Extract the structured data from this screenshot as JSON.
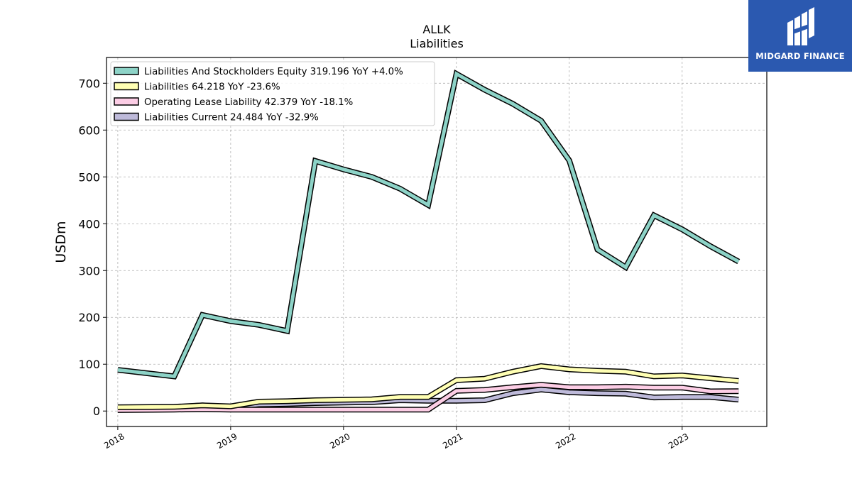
{
  "logo": {
    "text": "MIDGARD FINANCE",
    "bg_color": "#2b59b0"
  },
  "chart_data": {
    "type": "line",
    "title": "ALLK",
    "subtitle": "Liabilities",
    "ylabel": "USDm",
    "xlabel": "",
    "xlim": [
      2017.9,
      2023.75
    ],
    "ylim": [
      -33,
      755
    ],
    "yticks": [
      0,
      100,
      200,
      300,
      400,
      500,
      600,
      700
    ],
    "xticks": [
      "2018",
      "2019",
      "2020",
      "2021",
      "2022",
      "2023"
    ],
    "grid": true,
    "legend_position": "top-left",
    "x": [
      2018.0,
      2018.5,
      2018.75,
      2019.0,
      2019.25,
      2019.5,
      2019.75,
      2020.0,
      2020.25,
      2020.5,
      2020.75,
      2021.0,
      2021.25,
      2021.5,
      2021.75,
      2022.0,
      2022.25,
      2022.5,
      2022.75,
      2023.0,
      2023.25,
      2023.5
    ],
    "series": [
      {
        "name": "Liabilities And Stockholders Equity  319.196 YoY +4.0%",
        "color": "#8dd3c7",
        "values": [
          88,
          74,
          205,
          192,
          184,
          171,
          534,
          516,
          500,
          475,
          440,
          720,
          686,
          656,
          620,
          535,
          345,
          307,
          418,
          388,
          352,
          319.196
        ]
      },
      {
        "name": "Liabilities  64.218 YoY -23.6%",
        "color": "#ffffb3",
        "values": [
          8,
          9,
          12,
          10,
          20,
          21,
          23,
          24,
          25,
          30,
          30,
          66,
          69,
          84,
          96,
          89,
          86,
          84,
          74,
          76,
          70,
          64.218
        ]
      },
      {
        "name": "Operating Lease Liability  42.379 YoY -18.1%",
        "color": "#fccde5",
        "values": [
          2,
          3,
          4,
          3,
          3,
          3,
          3,
          3,
          3,
          3,
          3,
          43,
          45,
          51,
          56,
          51,
          51,
          52,
          50,
          50,
          42,
          42.379
        ]
      },
      {
        "name": "Liabilities Current  24.484 YoY -32.9%",
        "color": "#bebada",
        "values": [
          5,
          8,
          12,
          8,
          14,
          15,
          17,
          18,
          19,
          23,
          22,
          22,
          23,
          38,
          46,
          40,
          38,
          37,
          29,
          30,
          30,
          24.484
        ]
      }
    ]
  }
}
